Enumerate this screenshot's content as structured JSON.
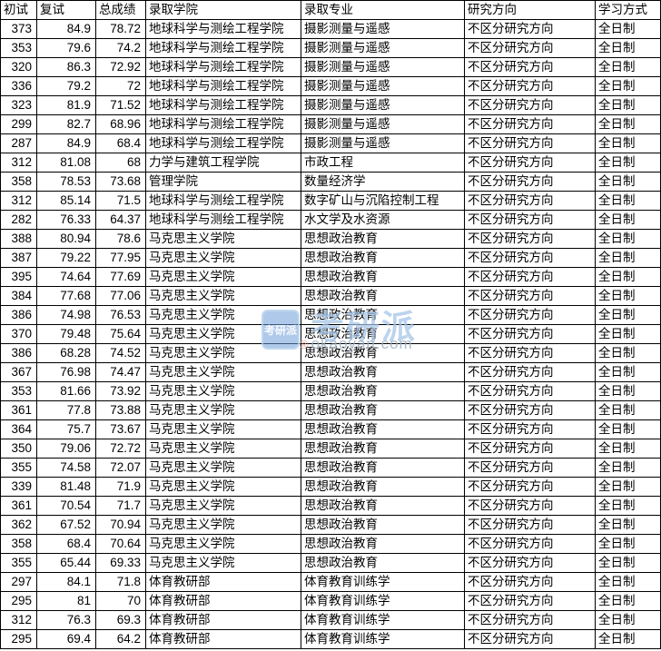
{
  "table": {
    "columns": [
      "初试",
      "复试",
      "总成绩",
      "录取学院",
      "录取专业",
      "研究方向",
      "学习方式"
    ],
    "rows": [
      [
        "373",
        "84.9",
        "78.72",
        "地球科学与测绘工程学院",
        "摄影测量与遥感",
        "不区分研究方向",
        "全日制"
      ],
      [
        "353",
        "79.6",
        "74.2",
        "地球科学与测绘工程学院",
        "摄影测量与遥感",
        "不区分研究方向",
        "全日制"
      ],
      [
        "320",
        "86.3",
        "72.92",
        "地球科学与测绘工程学院",
        "摄影测量与遥感",
        "不区分研究方向",
        "全日制"
      ],
      [
        "336",
        "79.2",
        "72",
        "地球科学与测绘工程学院",
        "摄影测量与遥感",
        "不区分研究方向",
        "全日制"
      ],
      [
        "323",
        "81.9",
        "71.52",
        "地球科学与测绘工程学院",
        "摄影测量与遥感",
        "不区分研究方向",
        "全日制"
      ],
      [
        "299",
        "82.7",
        "68.96",
        "地球科学与测绘工程学院",
        "摄影测量与遥感",
        "不区分研究方向",
        "全日制"
      ],
      [
        "287",
        "84.9",
        "68.4",
        "地球科学与测绘工程学院",
        "摄影测量与遥感",
        "不区分研究方向",
        "全日制"
      ],
      [
        "312",
        "81.08",
        "68",
        "力学与建筑工程学院",
        "市政工程",
        "不区分研究方向",
        "全日制"
      ],
      [
        "358",
        "78.53",
        "73.68",
        "管理学院",
        "数量经济学",
        "不区分研究方向",
        "全日制"
      ],
      [
        "312",
        "85.14",
        "71.5",
        "地球科学与测绘工程学院",
        "数字矿山与沉陷控制工程",
        "不区分研究方向",
        "全日制"
      ],
      [
        "282",
        "76.33",
        "64.37",
        "地球科学与测绘工程学院",
        "水文学及水资源",
        "不区分研究方向",
        "全日制"
      ],
      [
        "388",
        "80.94",
        "78.6",
        "马克思主义学院",
        "思想政治教育",
        "不区分研究方向",
        "全日制"
      ],
      [
        "387",
        "79.22",
        "77.95",
        "马克思主义学院",
        "思想政治教育",
        "不区分研究方向",
        "全日制"
      ],
      [
        "395",
        "74.64",
        "77.69",
        "马克思主义学院",
        "思想政治教育",
        "不区分研究方向",
        "全日制"
      ],
      [
        "384",
        "77.68",
        "77.06",
        "马克思主义学院",
        "思想政治教育",
        "不区分研究方向",
        "全日制"
      ],
      [
        "386",
        "74.98",
        "76.53",
        "马克思主义学院",
        "思想政治教育",
        "不区分研究方向",
        "全日制"
      ],
      [
        "370",
        "79.48",
        "75.64",
        "马克思主义学院",
        "思想政治教育",
        "不区分研究方向",
        "全日制"
      ],
      [
        "386",
        "68.28",
        "74.52",
        "马克思主义学院",
        "思想政治教育",
        "不区分研究方向",
        "全日制"
      ],
      [
        "367",
        "76.98",
        "74.47",
        "马克思主义学院",
        "思想政治教育",
        "不区分研究方向",
        "全日制"
      ],
      [
        "353",
        "81.66",
        "73.92",
        "马克思主义学院",
        "思想政治教育",
        "不区分研究方向",
        "全日制"
      ],
      [
        "361",
        "77.8",
        "73.88",
        "马克思主义学院",
        "思想政治教育",
        "不区分研究方向",
        "全日制"
      ],
      [
        "364",
        "75.7",
        "73.67",
        "马克思主义学院",
        "思想政治教育",
        "不区分研究方向",
        "全日制"
      ],
      [
        "350",
        "79.06",
        "72.72",
        "马克思主义学院",
        "思想政治教育",
        "不区分研究方向",
        "全日制"
      ],
      [
        "355",
        "74.58",
        "72.07",
        "马克思主义学院",
        "思想政治教育",
        "不区分研究方向",
        "全日制"
      ],
      [
        "339",
        "81.48",
        "71.9",
        "马克思主义学院",
        "思想政治教育",
        "不区分研究方向",
        "全日制"
      ],
      [
        "361",
        "70.54",
        "71.7",
        "马克思主义学院",
        "思想政治教育",
        "不区分研究方向",
        "全日制"
      ],
      [
        "362",
        "67.52",
        "70.94",
        "马克思主义学院",
        "思想政治教育",
        "不区分研究方向",
        "全日制"
      ],
      [
        "358",
        "68.4",
        "70.64",
        "马克思主义学院",
        "思想政治教育",
        "不区分研究方向",
        "全日制"
      ],
      [
        "355",
        "65.44",
        "69.33",
        "马克思主义学院",
        "思想政治教育",
        "不区分研究方向",
        "全日制"
      ],
      [
        "297",
        "84.1",
        "71.8",
        "体育教研部",
        "体育教育训练学",
        "不区分研究方向",
        "全日制"
      ],
      [
        "295",
        "81",
        "70",
        "体育教研部",
        "体育教育训练学",
        "不区分研究方向",
        "全日制"
      ],
      [
        "312",
        "76.3",
        "69.3",
        "体育教研部",
        "体育教育训练学",
        "不区分研究方向",
        "全日制"
      ],
      [
        "295",
        "69.4",
        "64.2",
        "体育教研部",
        "体育教育训练学",
        "不区分研究方向",
        "全日制"
      ]
    ]
  },
  "watermark": {
    "badge_text": "考研派",
    "brand_text": "考研派",
    "registered_mark": "®",
    "site_text": "okaoyan.com",
    "badge_color": "#6c9cd8",
    "brand_color": "#a2c4e6",
    "site_color": "#9eb0c6"
  }
}
